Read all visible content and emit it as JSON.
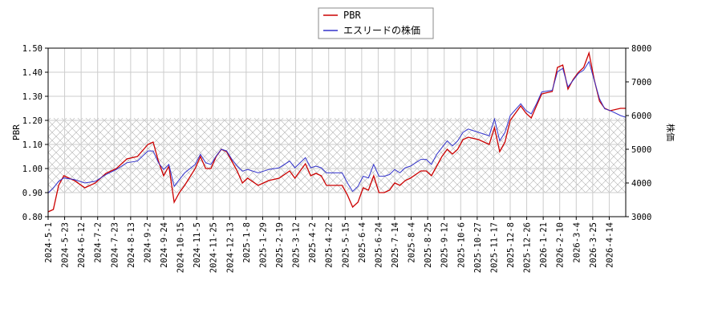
{
  "chart_data": {
    "type": "line",
    "left_axis_label": "PBR",
    "right_axis_label": "株価",
    "left_ylim": [
      0.8,
      1.5
    ],
    "left_yticks": [
      "0.80",
      "0.90",
      "1.00",
      "1.10",
      "1.20",
      "1.30",
      "1.40",
      "1.50"
    ],
    "right_ylim": [
      3000,
      8000
    ],
    "right_yticks": [
      "3000",
      "4000",
      "5000",
      "6000",
      "7000",
      "8000"
    ],
    "x_tick_labels": [
      "2024-5-1",
      "2024-5-23",
      "2024-6-12",
      "2024-7-2",
      "2024-7-23",
      "2024-8-13",
      "2024-9-2",
      "2024-9-24",
      "2024-10-15",
      "2024-11-5",
      "2024-11-25",
      "2024-12-13",
      "2025-1-8",
      "2025-1-29",
      "2025-2-19",
      "2025-3-12",
      "2025-4-2",
      "2025-4-22",
      "2025-5-15",
      "2025-6-4",
      "2025-6-24",
      "2025-7-14",
      "2025-8-4",
      "2025-8-25",
      "2025-9-12",
      "2025-10-6",
      "2025-10-27",
      "2025-11-17",
      "2025-12-8",
      "2025-12-26",
      "2026-1-21",
      "2026-2-10",
      "2026-3-4",
      "2026-3-25",
      "2026-4-14"
    ],
    "grid": true,
    "hatched_band_pbr": [
      0.9,
      1.21
    ],
    "legend_position": "top-center",
    "series": [
      {
        "name": "PBR",
        "axis": "left",
        "color": "#cc0000",
        "points": [
          [
            0,
            0.82
          ],
          [
            1,
            0.83
          ],
          [
            2,
            0.93
          ],
          [
            3,
            0.97
          ],
          [
            5,
            0.95
          ],
          [
            7,
            0.92
          ],
          [
            9,
            0.94
          ],
          [
            11,
            0.98
          ],
          [
            13,
            1.0
          ],
          [
            15,
            1.04
          ],
          [
            17,
            1.05
          ],
          [
            19,
            1.1
          ],
          [
            20,
            1.11
          ],
          [
            21,
            1.03
          ],
          [
            22,
            0.97
          ],
          [
            23,
            1.01
          ],
          [
            24,
            0.86
          ],
          [
            25,
            0.9
          ],
          [
            26,
            0.93
          ],
          [
            28,
            1.0
          ],
          [
            29,
            1.05
          ],
          [
            30,
            1.0
          ],
          [
            31,
            1.0
          ],
          [
            32,
            1.05
          ],
          [
            33,
            1.08
          ],
          [
            34,
            1.07
          ],
          [
            35,
            1.03
          ],
          [
            36,
            0.99
          ],
          [
            37,
            0.94
          ],
          [
            38,
            0.96
          ],
          [
            40,
            0.93
          ],
          [
            41,
            0.94
          ],
          [
            42,
            0.95
          ],
          [
            44,
            0.96
          ],
          [
            46,
            0.99
          ],
          [
            47,
            0.96
          ],
          [
            49,
            1.02
          ],
          [
            50,
            0.97
          ],
          [
            51,
            0.98
          ],
          [
            52,
            0.97
          ],
          [
            53,
            0.93
          ],
          [
            56,
            0.93
          ],
          [
            57,
            0.89
          ],
          [
            58,
            0.84
          ],
          [
            59,
            0.86
          ],
          [
            60,
            0.92
          ],
          [
            61,
            0.91
          ],
          [
            62,
            0.97
          ],
          [
            63,
            0.9
          ],
          [
            64,
            0.9
          ],
          [
            65,
            0.91
          ],
          [
            66,
            0.94
          ],
          [
            67,
            0.93
          ],
          [
            68,
            0.95
          ],
          [
            69,
            0.96
          ],
          [
            71,
            0.99
          ],
          [
            72,
            0.99
          ],
          [
            73,
            0.97
          ],
          [
            74,
            1.01
          ],
          [
            75,
            1.05
          ],
          [
            76,
            1.08
          ],
          [
            77,
            1.06
          ],
          [
            78,
            1.08
          ],
          [
            79,
            1.12
          ],
          [
            80,
            1.13
          ],
          [
            82,
            1.12
          ],
          [
            84,
            1.1
          ],
          [
            85,
            1.17
          ],
          [
            86,
            1.07
          ],
          [
            87,
            1.11
          ],
          [
            88,
            1.2
          ],
          [
            90,
            1.26
          ],
          [
            91,
            1.23
          ],
          [
            92,
            1.21
          ],
          [
            93,
            1.26
          ],
          [
            94,
            1.31
          ],
          [
            96,
            1.32
          ],
          [
            97,
            1.42
          ],
          [
            98,
            1.43
          ],
          [
            99,
            1.33
          ],
          [
            100,
            1.37
          ],
          [
            101,
            1.4
          ],
          [
            102,
            1.42
          ],
          [
            103,
            1.48
          ],
          [
            104,
            1.37
          ],
          [
            105,
            1.28
          ],
          [
            106,
            1.25
          ],
          [
            107,
            1.24
          ],
          [
            109,
            1.25
          ],
          [
            110,
            1.25
          ]
        ]
      },
      {
        "name": "エスリードの株価",
        "axis": "right",
        "color": "#3333cc",
        "points": [
          [
            0,
            3700
          ],
          [
            1,
            3850
          ],
          [
            2,
            4050
          ],
          [
            3,
            4150
          ],
          [
            5,
            4100
          ],
          [
            7,
            4000
          ],
          [
            9,
            4050
          ],
          [
            11,
            4250
          ],
          [
            13,
            4400
          ],
          [
            15,
            4600
          ],
          [
            17,
            4650
          ],
          [
            19,
            4950
          ],
          [
            20,
            4950
          ],
          [
            21,
            4600
          ],
          [
            22,
            4400
          ],
          [
            23,
            4550
          ],
          [
            24,
            3900
          ],
          [
            25,
            4100
          ],
          [
            26,
            4300
          ],
          [
            28,
            4550
          ],
          [
            29,
            4850
          ],
          [
            30,
            4600
          ],
          [
            31,
            4550
          ],
          [
            32,
            4800
          ],
          [
            33,
            5000
          ],
          [
            34,
            4950
          ],
          [
            35,
            4700
          ],
          [
            36,
            4500
          ],
          [
            37,
            4350
          ],
          [
            38,
            4400
          ],
          [
            40,
            4300
          ],
          [
            41,
            4350
          ],
          [
            42,
            4400
          ],
          [
            44,
            4450
          ],
          [
            46,
            4650
          ],
          [
            47,
            4450
          ],
          [
            49,
            4750
          ],
          [
            50,
            4450
          ],
          [
            51,
            4500
          ],
          [
            52,
            4450
          ],
          [
            53,
            4300
          ],
          [
            56,
            4300
          ],
          [
            57,
            4000
          ],
          [
            58,
            3750
          ],
          [
            59,
            3900
          ],
          [
            60,
            4200
          ],
          [
            61,
            4150
          ],
          [
            62,
            4550
          ],
          [
            63,
            4200
          ],
          [
            64,
            4200
          ],
          [
            65,
            4250
          ],
          [
            66,
            4400
          ],
          [
            67,
            4300
          ],
          [
            68,
            4450
          ],
          [
            69,
            4500
          ],
          [
            71,
            4700
          ],
          [
            72,
            4700
          ],
          [
            73,
            4550
          ],
          [
            74,
            4850
          ],
          [
            75,
            5050
          ],
          [
            76,
            5250
          ],
          [
            77,
            5100
          ],
          [
            78,
            5250
          ],
          [
            79,
            5500
          ],
          [
            80,
            5600
          ],
          [
            82,
            5500
          ],
          [
            84,
            5400
          ],
          [
            85,
            5900
          ],
          [
            86,
            5250
          ],
          [
            87,
            5500
          ],
          [
            88,
            6000
          ],
          [
            90,
            6350
          ],
          [
            91,
            6150
          ],
          [
            92,
            6050
          ],
          [
            93,
            6350
          ],
          [
            94,
            6700
          ],
          [
            96,
            6750
          ],
          [
            97,
            7300
          ],
          [
            98,
            7400
          ],
          [
            99,
            6850
          ],
          [
            100,
            7050
          ],
          [
            101,
            7250
          ],
          [
            102,
            7350
          ],
          [
            103,
            7600
          ],
          [
            104,
            7050
          ],
          [
            105,
            6500
          ],
          [
            106,
            6200
          ],
          [
            107,
            6150
          ],
          [
            109,
            6000
          ],
          [
            110,
            5950
          ]
        ]
      }
    ]
  }
}
